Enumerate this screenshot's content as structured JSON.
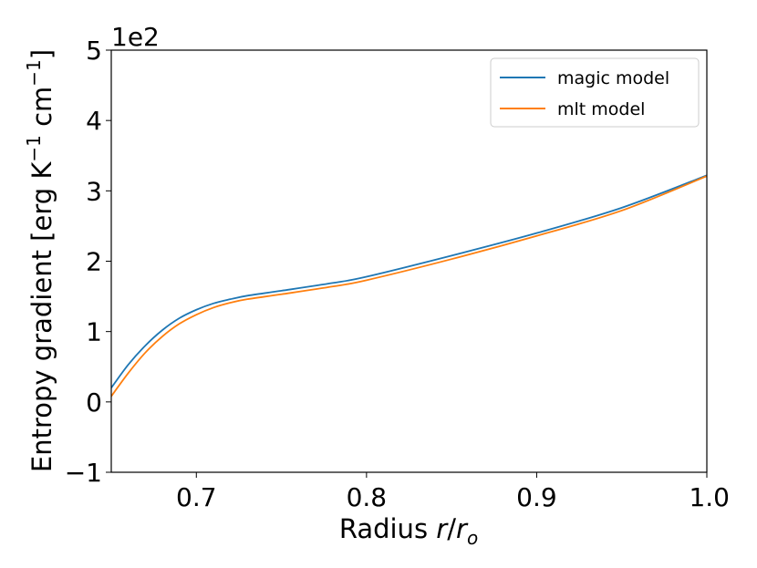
{
  "chart_data": {
    "type": "line",
    "title": "",
    "xlabel": "Radius r/rₒ",
    "xlabel_parts": {
      "prefix": "Radius ",
      "var": "r",
      "slash": "/",
      "var2": "r",
      "sub": "o"
    },
    "ylabel": "Entropy gradient [erg K⁻¹ cm⁻¹]",
    "ylabel_parts": {
      "prefix": "Entropy gradient [erg K",
      "sup1": "−1",
      "mid": " cm",
      "sup2": "−1",
      "suffix": "]"
    },
    "y_multiplier": "1e2",
    "xlim": [
      0.65,
      1.0
    ],
    "ylim": [
      -1,
      5
    ],
    "x_ticks": [
      {
        "value": 0.7,
        "label": "0.7"
      },
      {
        "value": 0.8,
        "label": "0.8"
      },
      {
        "value": 0.9,
        "label": "0.9"
      },
      {
        "value": 1.0,
        "label": "1.0"
      }
    ],
    "y_ticks": [
      {
        "value": -1,
        "label": "−1"
      },
      {
        "value": 0,
        "label": "0"
      },
      {
        "value": 1,
        "label": "1"
      },
      {
        "value": 2,
        "label": "2"
      },
      {
        "value": 3,
        "label": "3"
      },
      {
        "value": 4,
        "label": "4"
      },
      {
        "value": 5,
        "label": "5"
      }
    ],
    "grid": false,
    "legend_position": "top-right",
    "series": [
      {
        "name": "magic model",
        "color": "#1f77b4",
        "x": [
          0.65,
          0.66,
          0.67,
          0.68,
          0.69,
          0.7,
          0.71,
          0.72,
          0.73,
          0.75,
          0.78,
          0.8,
          0.85,
          0.9,
          0.95,
          1.0
        ],
        "y": [
          0.2,
          0.53,
          0.8,
          1.02,
          1.19,
          1.31,
          1.4,
          1.46,
          1.51,
          1.58,
          1.69,
          1.78,
          2.08,
          2.4,
          2.76,
          3.22
        ]
      },
      {
        "name": "mlt model",
        "color": "#ff7f0e",
        "x": [
          0.65,
          0.66,
          0.67,
          0.68,
          0.69,
          0.7,
          0.71,
          0.72,
          0.73,
          0.75,
          0.78,
          0.8,
          0.85,
          0.9,
          0.95,
          1.0
        ],
        "y": [
          0.08,
          0.41,
          0.7,
          0.93,
          1.11,
          1.24,
          1.34,
          1.41,
          1.46,
          1.53,
          1.64,
          1.73,
          2.03,
          2.36,
          2.72,
          3.21
        ]
      }
    ]
  }
}
